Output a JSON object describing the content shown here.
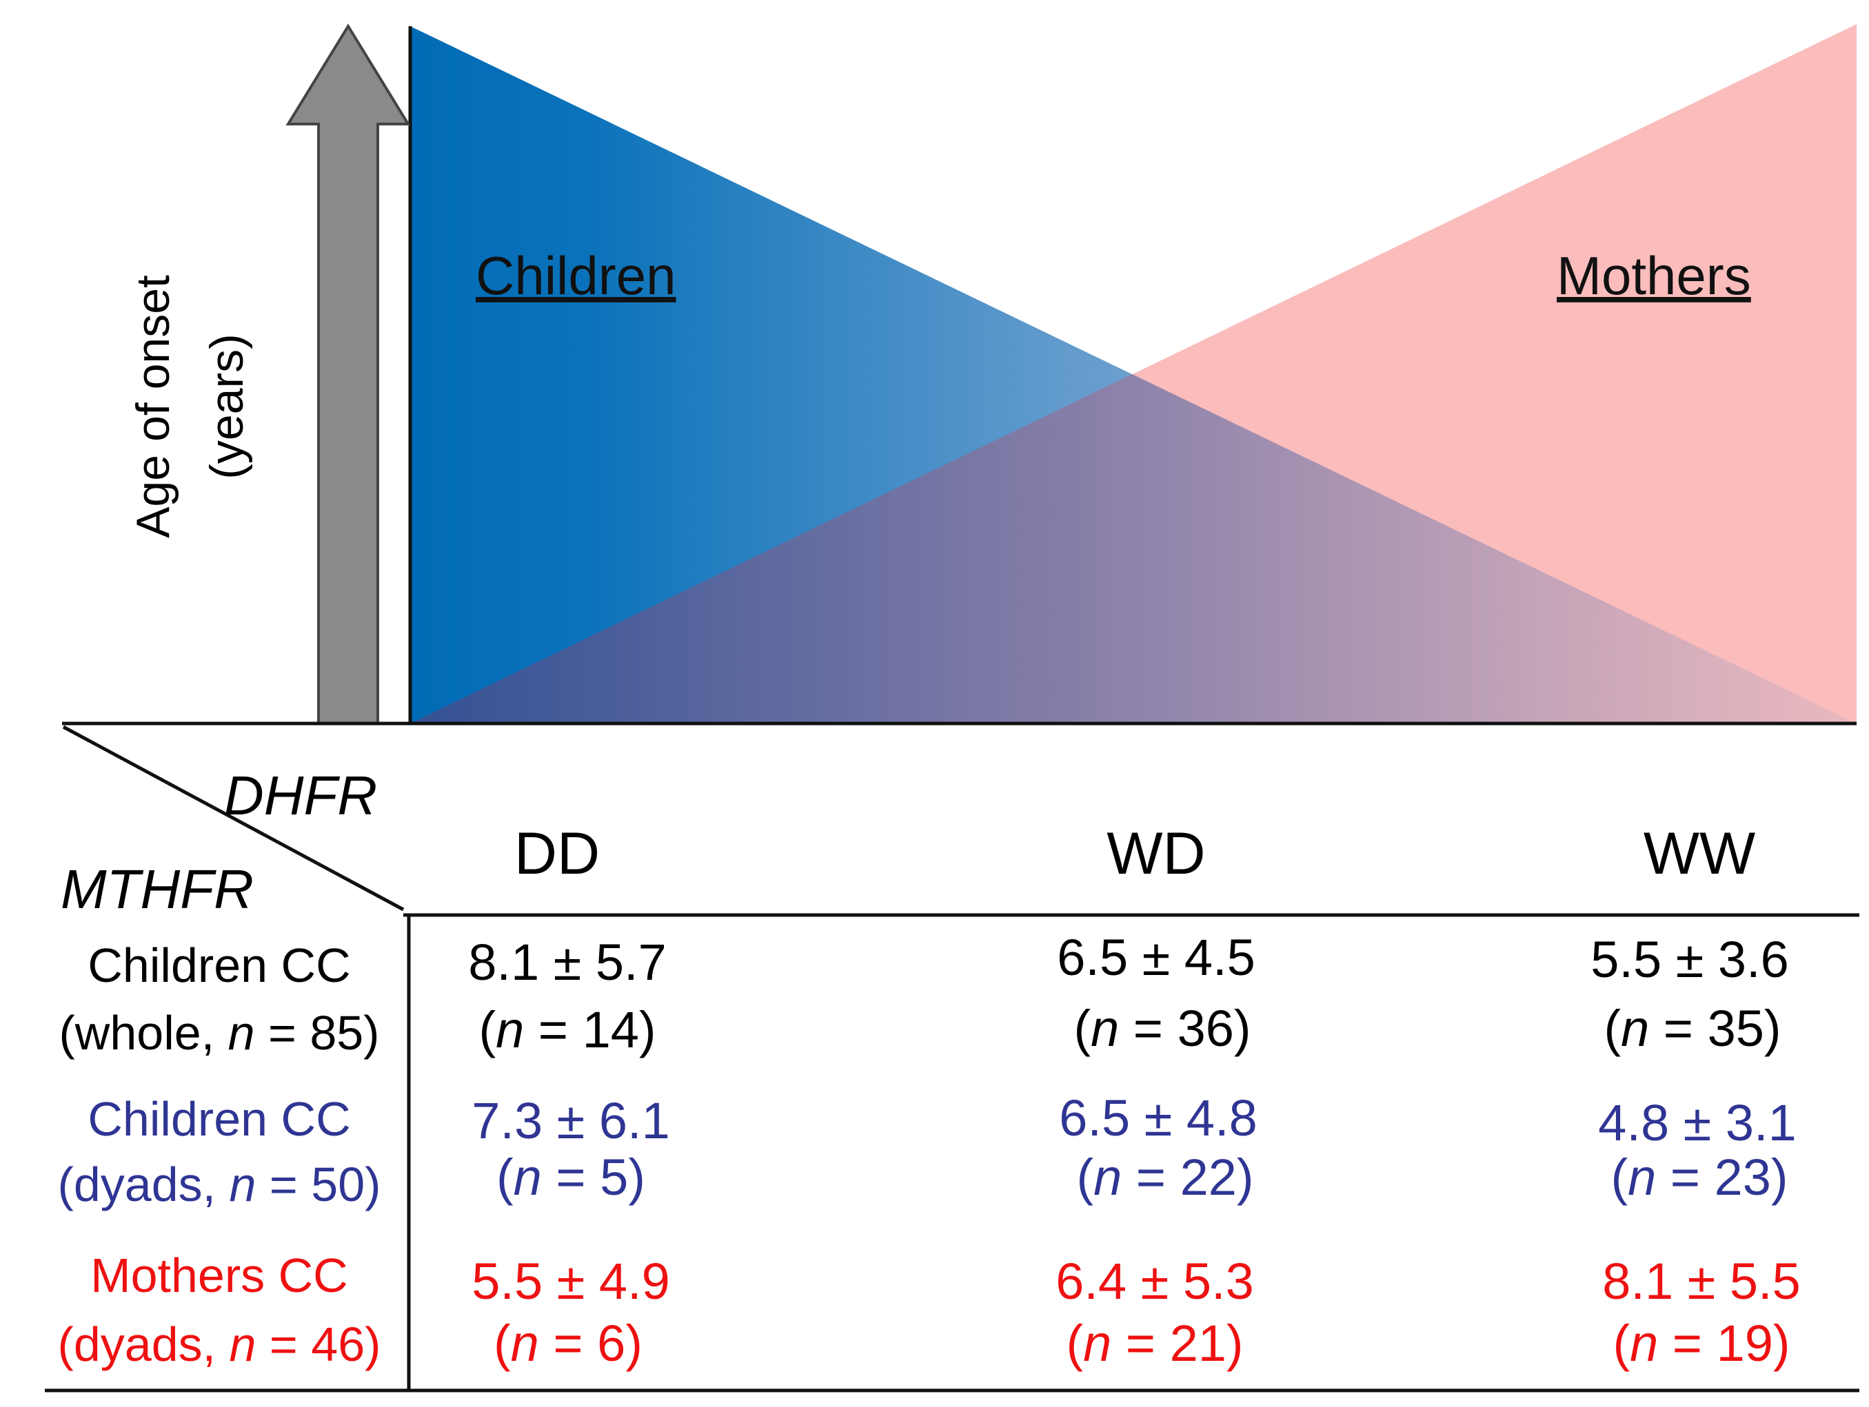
{
  "axis": {
    "label_line1": "Age of onset",
    "label_line2": "(years)"
  },
  "panels": {
    "children_label": "Children",
    "mothers_label": "Mothers"
  },
  "genes": {
    "column_gene": "DHFR",
    "row_gene": "MTHFR"
  },
  "columns": [
    "DD",
    "WD",
    "WW"
  ],
  "colors": {
    "children_blue": "#0070bb",
    "mothers_pink": "#fbbcbc",
    "arrow_gray": "#8a8a8a",
    "dyads_text": "#2f3593",
    "mothers_text": "#ee1111",
    "whole_text": "#000000"
  },
  "rows": [
    {
      "label_line1": "Children CC",
      "label_prefix": "(whole, ",
      "label_n": "n",
      "label_suffix": " = 85)",
      "cells": [
        {
          "mean_sd": "8.1 ± 5.7",
          "n_prefix": "(",
          "n_var": "n",
          "n_suffix": " = 14)"
        },
        {
          "mean_sd": "6.5 ± 4.5",
          "n_prefix": "(",
          "n_var": "n",
          "n_suffix": " = 36)"
        },
        {
          "mean_sd": "5.5 ± 3.6",
          "n_prefix": "(",
          "n_var": "n",
          "n_suffix": " = 35)"
        }
      ]
    },
    {
      "label_line1": "Children CC",
      "label_prefix": "(dyads, ",
      "label_n": "n",
      "label_suffix": " = 50)",
      "cells": [
        {
          "mean_sd": "7.3 ± 6.1",
          "n_prefix": "(",
          "n_var": "n",
          "n_suffix": " = 5)"
        },
        {
          "mean_sd": "6.5 ± 4.8",
          "n_prefix": "(",
          "n_var": "n",
          "n_suffix": " = 22)"
        },
        {
          "mean_sd": "4.8 ± 3.1",
          "n_prefix": "(",
          "n_var": "n",
          "n_suffix": " = 23)"
        }
      ]
    },
    {
      "label_line1": "Mothers CC",
      "label_prefix": "(dyads, ",
      "label_n": "n",
      "label_suffix": " = 46)",
      "cells": [
        {
          "mean_sd": "5.5 ± 4.9",
          "n_prefix": "(",
          "n_var": "n",
          "n_suffix": " = 6)"
        },
        {
          "mean_sd": "6.4 ± 5.3",
          "n_prefix": "(",
          "n_var": "n",
          "n_suffix": " = 21)"
        },
        {
          "mean_sd": "8.1 ± 5.5",
          "n_prefix": "(",
          "n_var": "n",
          "n_suffix": " = 19)"
        }
      ]
    }
  ]
}
